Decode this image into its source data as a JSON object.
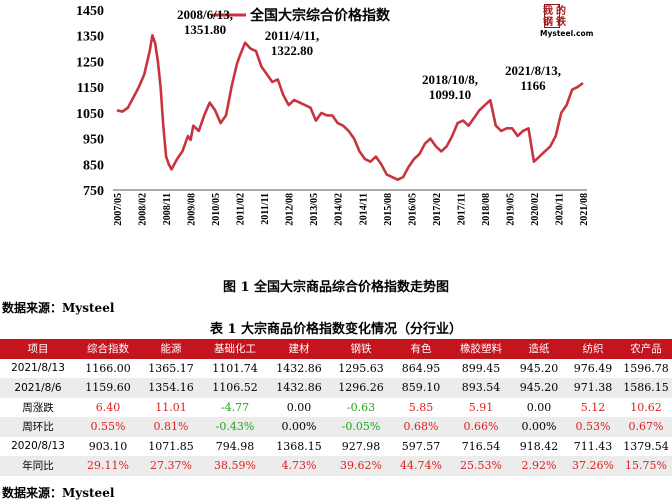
{
  "chart_data": {
    "type": "line",
    "title": "",
    "legend": "全国大宗综合价格指数",
    "legend_position": "top",
    "line_color": "#c8343e",
    "ylim": [
      750,
      1450
    ],
    "yticks": [
      750,
      850,
      950,
      1050,
      1150,
      1250,
      1350,
      1450
    ],
    "xticks": [
      "2007/05",
      "2008/02",
      "2008/11",
      "2009/08",
      "2010/05",
      "2011/02",
      "2011/11",
      "2012/08",
      "2013/05",
      "2014/02",
      "2014/11",
      "2015/08",
      "2016/05",
      "2017/02",
      "2017/11",
      "2018/08",
      "2019/05",
      "2020/02",
      "2020/11",
      "2021/08"
    ],
    "x": [
      "2007-05",
      "2007-07",
      "2007-09",
      "2007-11",
      "2008-01",
      "2008-03",
      "2008-05",
      "2008-06",
      "2008-07",
      "2008-08",
      "2008-09",
      "2008-10",
      "2008-11",
      "2008-12",
      "2009-01",
      "2009-03",
      "2009-05",
      "2009-07",
      "2009-08",
      "2009-09",
      "2009-11",
      "2010-01",
      "2010-03",
      "2010-05",
      "2010-07",
      "2010-09",
      "2010-11",
      "2011-01",
      "2011-02",
      "2011-04",
      "2011-06",
      "2011-08",
      "2011-10",
      "2011-12",
      "2012-02",
      "2012-04",
      "2012-06",
      "2012-08",
      "2012-10",
      "2012-12",
      "2013-02",
      "2013-04",
      "2013-06",
      "2013-08",
      "2013-10",
      "2013-12",
      "2014-02",
      "2014-04",
      "2014-06",
      "2014-08",
      "2014-10",
      "2014-12",
      "2015-02",
      "2015-04",
      "2015-06",
      "2015-08",
      "2015-10",
      "2015-12",
      "2016-02",
      "2016-04",
      "2016-06",
      "2016-08",
      "2016-10",
      "2016-12",
      "2017-02",
      "2017-04",
      "2017-06",
      "2017-08",
      "2017-10",
      "2017-12",
      "2018-02",
      "2018-04",
      "2018-06",
      "2018-08",
      "2018-10",
      "2018-12",
      "2019-02",
      "2019-04",
      "2019-06",
      "2019-08",
      "2019-10",
      "2019-12",
      "2020-02",
      "2020-04",
      "2020-06",
      "2020-08",
      "2020-10",
      "2020-12",
      "2021-02",
      "2021-04",
      "2021-06",
      "2021-08"
    ],
    "values": [
      1060,
      1055,
      1070,
      1110,
      1150,
      1200,
      1290,
      1351.8,
      1320,
      1250,
      1150,
      1000,
      880,
      850,
      830,
      870,
      900,
      960,
      945,
      1000,
      980,
      1040,
      1090,
      1060,
      1010,
      1040,
      1150,
      1240,
      1270,
      1322.8,
      1300,
      1290,
      1230,
      1200,
      1170,
      1180,
      1120,
      1080,
      1100,
      1090,
      1080,
      1070,
      1020,
      1050,
      1040,
      1040,
      1010,
      1000,
      980,
      950,
      900,
      870,
      860,
      880,
      850,
      810,
      800,
      790,
      800,
      840,
      870,
      890,
      930,
      950,
      920,
      900,
      920,
      960,
      1010,
      1020,
      1000,
      1030,
      1060,
      1080,
      1099.1,
      1000,
      980,
      990,
      990,
      960,
      980,
      990,
      860,
      880,
      900,
      920,
      960,
      1050,
      1080,
      1140,
      1150,
      1166
    ],
    "annotations": [
      {
        "label": "2008/6/13,",
        "value": "1351.80"
      },
      {
        "label": "2011/4/11,",
        "value": "1322.80"
      },
      {
        "label": "2018/10/8,",
        "value": "1099.10"
      },
      {
        "label": "2021/8/13,",
        "value": "1166"
      }
    ]
  },
  "watermark": {
    "chars": [
      "我",
      "的",
      "钢",
      "铁"
    ],
    "brand": "Mysteel.com"
  },
  "figure_caption": "图 1 全国大宗商品综合价格指数走势图",
  "source_top": "数据来源：Mysteel",
  "table_title": "表 1 大宗商品价格指数变化情况（分行业）",
  "table": {
    "headers": [
      "项目",
      "综合指数",
      "能源",
      "基础化工",
      "建材",
      "钢铁",
      "有色",
      "橡胶塑料",
      "造纸",
      "纺织",
      "农产品"
    ],
    "rows": [
      {
        "label": "2021/8/13",
        "cells": [
          [
            "1166.00",
            "zero"
          ],
          [
            "1365.17",
            "zero"
          ],
          [
            "1101.74",
            "zero"
          ],
          [
            "1432.86",
            "zero"
          ],
          [
            "1295.63",
            "zero"
          ],
          [
            "864.95",
            "zero"
          ],
          [
            "899.45",
            "zero"
          ],
          [
            "945.20",
            "zero"
          ],
          [
            "976.49",
            "zero"
          ],
          [
            "1596.78",
            "zero"
          ]
        ]
      },
      {
        "label": "2021/8/6",
        "cells": [
          [
            "1159.60",
            "zero"
          ],
          [
            "1354.16",
            "zero"
          ],
          [
            "1106.52",
            "zero"
          ],
          [
            "1432.86",
            "zero"
          ],
          [
            "1296.26",
            "zero"
          ],
          [
            "859.10",
            "zero"
          ],
          [
            "893.54",
            "zero"
          ],
          [
            "945.20",
            "zero"
          ],
          [
            "971.38",
            "zero"
          ],
          [
            "1586.15",
            "zero"
          ]
        ]
      },
      {
        "label": "周涨跌",
        "cells": [
          [
            "6.40",
            "pos"
          ],
          [
            "11.01",
            "pos"
          ],
          [
            "-4.77",
            "neg"
          ],
          [
            "0.00",
            "zero"
          ],
          [
            "-0.63",
            "neg"
          ],
          [
            "5.85",
            "pos"
          ],
          [
            "5.91",
            "pos"
          ],
          [
            "0.00",
            "zero"
          ],
          [
            "5.12",
            "pos"
          ],
          [
            "10.62",
            "pos"
          ]
        ]
      },
      {
        "label": "周环比",
        "cells": [
          [
            "0.55%",
            "pos"
          ],
          [
            "0.81%",
            "pos"
          ],
          [
            "-0.43%",
            "neg"
          ],
          [
            "0.00%",
            "zero"
          ],
          [
            "-0.05%",
            "neg"
          ],
          [
            "0.68%",
            "pos"
          ],
          [
            "0.66%",
            "pos"
          ],
          [
            "0.00%",
            "zero"
          ],
          [
            "0.53%",
            "pos"
          ],
          [
            "0.67%",
            "pos"
          ]
        ]
      },
      {
        "label": "2020/8/13",
        "cells": [
          [
            "903.10",
            "zero"
          ],
          [
            "1071.85",
            "zero"
          ],
          [
            "794.98",
            "zero"
          ],
          [
            "1368.15",
            "zero"
          ],
          [
            "927.98",
            "zero"
          ],
          [
            "597.57",
            "zero"
          ],
          [
            "716.54",
            "zero"
          ],
          [
            "918.42",
            "zero"
          ],
          [
            "711.43",
            "zero"
          ],
          [
            "1379.54",
            "zero"
          ]
        ]
      },
      {
        "label": "年同比",
        "cells": [
          [
            "29.11%",
            "pos"
          ],
          [
            "27.37%",
            "pos"
          ],
          [
            "38.59%",
            "pos"
          ],
          [
            "4.73%",
            "pos"
          ],
          [
            "39.62%",
            "pos"
          ],
          [
            "44.74%",
            "pos"
          ],
          [
            "25.53%",
            "pos"
          ],
          [
            "2.92%",
            "pos"
          ],
          [
            "37.26%",
            "pos"
          ],
          [
            "15.75%",
            "pos"
          ]
        ]
      }
    ]
  },
  "source_bottom": "数据来源：Mysteel"
}
